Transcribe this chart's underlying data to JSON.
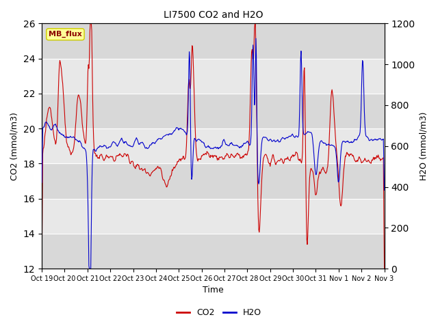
{
  "title": "LI7500 CO2 and H2O",
  "xlabel": "Time",
  "ylabel_left": "CO2 (mmol/m3)",
  "ylabel_right": "H2O (mmol/m3)",
  "ylim_left": [
    12,
    26
  ],
  "ylim_right": [
    0,
    1200
  ],
  "yticks_left": [
    12,
    14,
    16,
    18,
    20,
    22,
    24,
    26
  ],
  "yticks_right": [
    0,
    200,
    400,
    600,
    800,
    1000,
    1200
  ],
  "xtick_labels": [
    "Oct 19",
    "Oct 20",
    "Oct 21",
    "Oct 22",
    "Oct 23",
    "Oct 24",
    "Oct 25",
    "Oct 26",
    "Oct 27",
    "Oct 28",
    "Oct 29",
    "Oct 30",
    "Oct 31",
    "Nov 1",
    "Nov 2",
    "Nov 3"
  ],
  "co2_color": "#cc0000",
  "h2o_color": "#0000cc",
  "plot_bg_color": "#e8e8e8",
  "grid_color": "#ffffff",
  "mb_flux_box_color": "#ffff99",
  "mb_flux_border_color": "#cccc00",
  "mb_flux_text": "MB_flux",
  "legend_co2": "CO2",
  "legend_h2o": "H2O",
  "line_width": 0.8
}
